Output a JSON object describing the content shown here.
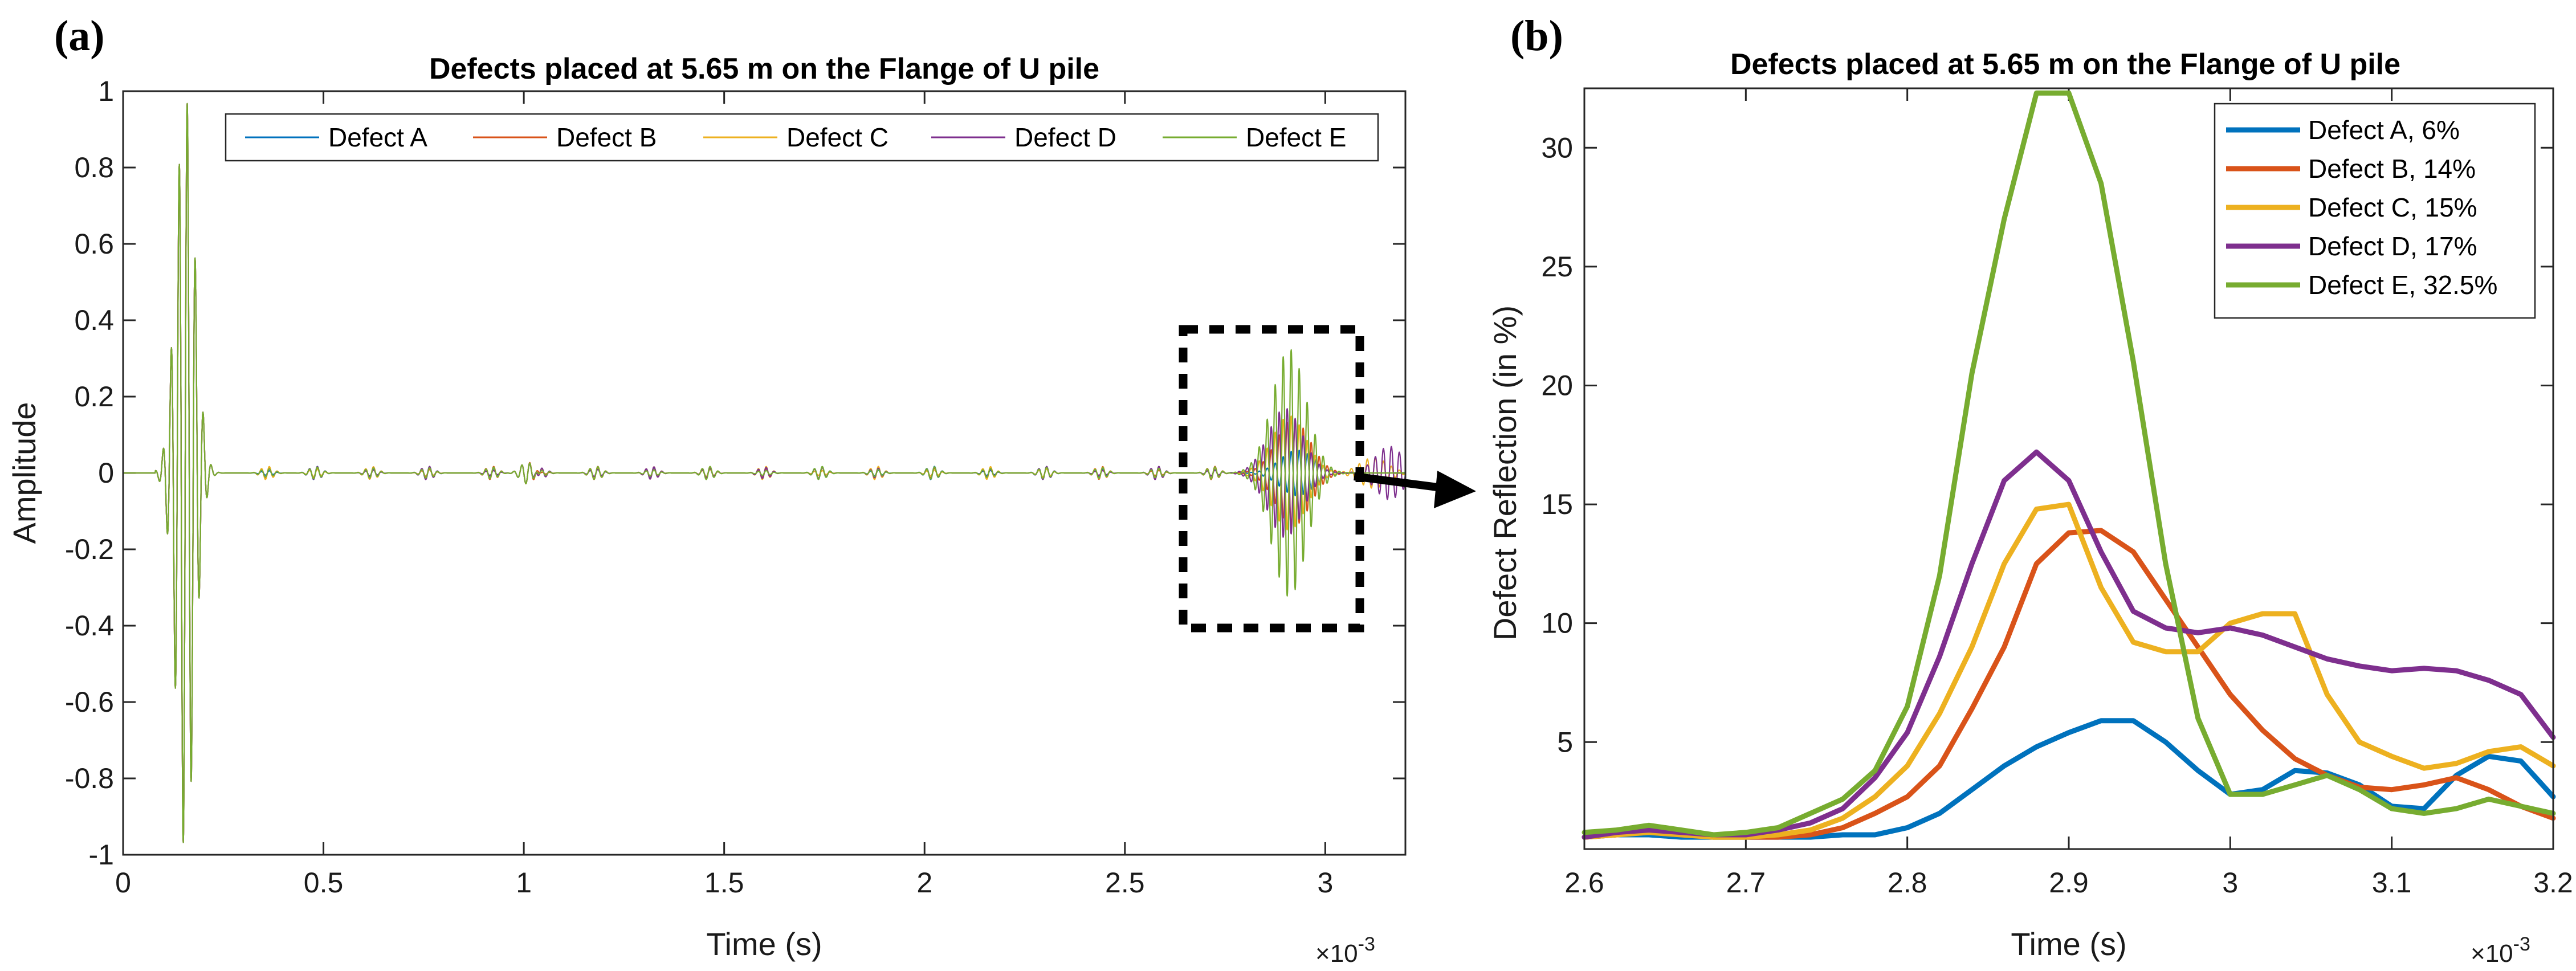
{
  "colors": {
    "A": "#0072BD",
    "B": "#D95319",
    "C": "#EDB120",
    "D": "#7E2F8E",
    "E": "#77AC30"
  },
  "chart_data": [
    {
      "panel_label": "(a)",
      "type": "line",
      "title": "Defects placed at 5.65 m on the Flange of U pile",
      "xlabel": "Time (s)",
      "ylabel": "Amplitude",
      "xlim": [
        0,
        0.0032
      ],
      "ylim": [
        -1,
        1
      ],
      "x_multiplier": "×10",
      "x_multiplier_exp": "-3",
      "xticks": [
        0,
        0.0005,
        0.001,
        0.0015,
        0.002,
        0.0025,
        0.003
      ],
      "xtick_labels": [
        "0",
        "0.5",
        "1",
        "1.5",
        "2",
        "2.5",
        "3"
      ],
      "yticks": [
        -1,
        -0.8,
        -0.6,
        -0.4,
        -0.2,
        0,
        0.2,
        0.4,
        0.6,
        0.8,
        1
      ],
      "ytick_labels": [
        "-1",
        "-0.8",
        "-0.6",
        "-0.4",
        "-0.2",
        "0",
        "0.2",
        "0.4",
        "0.6",
        "0.8",
        "1"
      ],
      "legend": [
        "Defect A",
        "Defect B",
        "Defect C",
        "Defect D",
        "Defect E"
      ],
      "legend_position": "top-inside",
      "incident_pulse": {
        "center_time": 0.000155,
        "peak_amplitude": 0.99
      },
      "defect_echo_peaks": [
        {
          "name": "Defect A",
          "center_time": 0.00293,
          "peak_amplitude": 0.06
        },
        {
          "name": "Defect B",
          "center_time": 0.00292,
          "peak_amplitude": 0.14
        },
        {
          "name": "Defect C",
          "center_time": 0.00291,
          "peak_amplitude": 0.15
        },
        {
          "name": "Defect D",
          "center_time": 0.0029,
          "peak_amplitude": 0.17
        },
        {
          "name": "Defect E",
          "center_time": 0.00291,
          "peak_amplitude": 0.325
        }
      ],
      "annotation": "dashed box around 2.68e-3 to 3.08e-3 s, arrow to panel (b)"
    },
    {
      "panel_label": "(b)",
      "type": "line",
      "title": "Defects placed at 5.65 m on the Flange of U pile",
      "xlabel": "Time (s)",
      "ylabel": "Defect Reflection (in %)",
      "xlim": [
        0.0026,
        0.0032
      ],
      "ylim": [
        0.5,
        32.5
      ],
      "x_multiplier": "×10",
      "x_multiplier_exp": "-3",
      "xticks": [
        0.0026,
        0.0027,
        0.0028,
        0.0029,
        0.003,
        0.0031,
        0.0032
      ],
      "xtick_labels": [
        "2.6",
        "2.7",
        "2.8",
        "2.9",
        "3",
        "3.1",
        "3.2"
      ],
      "yticks": [
        5,
        10,
        15,
        20,
        25,
        30
      ],
      "ytick_labels": [
        "5",
        "10",
        "15",
        "20",
        "25",
        "30"
      ],
      "legend": [
        "Defect A, 6%",
        "Defect B, 14%",
        "Defect C, 15%",
        "Defect D, 17%",
        "Defect E, 32.5%"
      ],
      "legend_position": "top-right",
      "x": [
        2.6,
        2.62,
        2.64,
        2.66,
        2.68,
        2.7,
        2.72,
        2.74,
        2.76,
        2.78,
        2.8,
        2.82,
        2.84,
        2.86,
        2.88,
        2.9,
        2.92,
        2.94,
        2.96,
        2.98,
        3.0,
        3.02,
        3.04,
        3.06,
        3.08,
        3.1,
        3.12,
        3.14,
        3.16,
        3.18,
        3.2
      ],
      "series": [
        {
          "name": "Defect A, 6%",
          "values": [
            1.0,
            1.1,
            1.1,
            1.0,
            1.0,
            1.0,
            1.0,
            1.0,
            1.1,
            1.1,
            1.4,
            2.0,
            3.0,
            4.0,
            4.8,
            5.4,
            5.9,
            5.9,
            5.0,
            3.8,
            2.8,
            3.0,
            3.8,
            3.7,
            3.2,
            2.3,
            2.2,
            3.6,
            4.4,
            4.2,
            2.7
          ]
        },
        {
          "name": "Defect B, 14%",
          "values": [
            1.0,
            1.1,
            1.2,
            1.1,
            1.0,
            1.0,
            1.0,
            1.1,
            1.4,
            2.0,
            2.7,
            4.0,
            6.4,
            9.0,
            12.5,
            13.8,
            13.9,
            13.0,
            11.0,
            9.0,
            7.0,
            5.5,
            4.3,
            3.6,
            3.1,
            3.0,
            3.2,
            3.5,
            3.0,
            2.3,
            1.8
          ]
        },
        {
          "name": "Defect C, 15%",
          "values": [
            1.0,
            1.1,
            1.2,
            1.1,
            1.0,
            1.0,
            1.1,
            1.3,
            1.8,
            2.7,
            4.0,
            6.2,
            9.0,
            12.5,
            14.8,
            15.0,
            11.5,
            9.2,
            8.8,
            8.8,
            10.0,
            10.4,
            10.4,
            7.0,
            5.0,
            4.4,
            3.9,
            4.1,
            4.6,
            4.8,
            4.0
          ]
        },
        {
          "name": "Defect D, 17%",
          "values": [
            1.0,
            1.2,
            1.3,
            1.2,
            1.1,
            1.1,
            1.3,
            1.6,
            2.2,
            3.5,
            5.4,
            8.6,
            12.5,
            16.0,
            17.2,
            16.0,
            13.0,
            10.5,
            9.8,
            9.6,
            9.8,
            9.5,
            9.0,
            8.5,
            8.2,
            8.0,
            8.1,
            8.0,
            7.6,
            7.0,
            5.2
          ]
        },
        {
          "name": "Defect E, 32.5%",
          "values": [
            1.2,
            1.3,
            1.5,
            1.3,
            1.1,
            1.2,
            1.4,
            2.0,
            2.6,
            3.8,
            6.5,
            12.0,
            20.5,
            27.0,
            32.3,
            32.3,
            28.5,
            21.0,
            12.5,
            6.0,
            2.8,
            2.8,
            3.2,
            3.6,
            3.0,
            2.2,
            2.0,
            2.2,
            2.6,
            2.3,
            2.0
          ]
        }
      ]
    }
  ]
}
